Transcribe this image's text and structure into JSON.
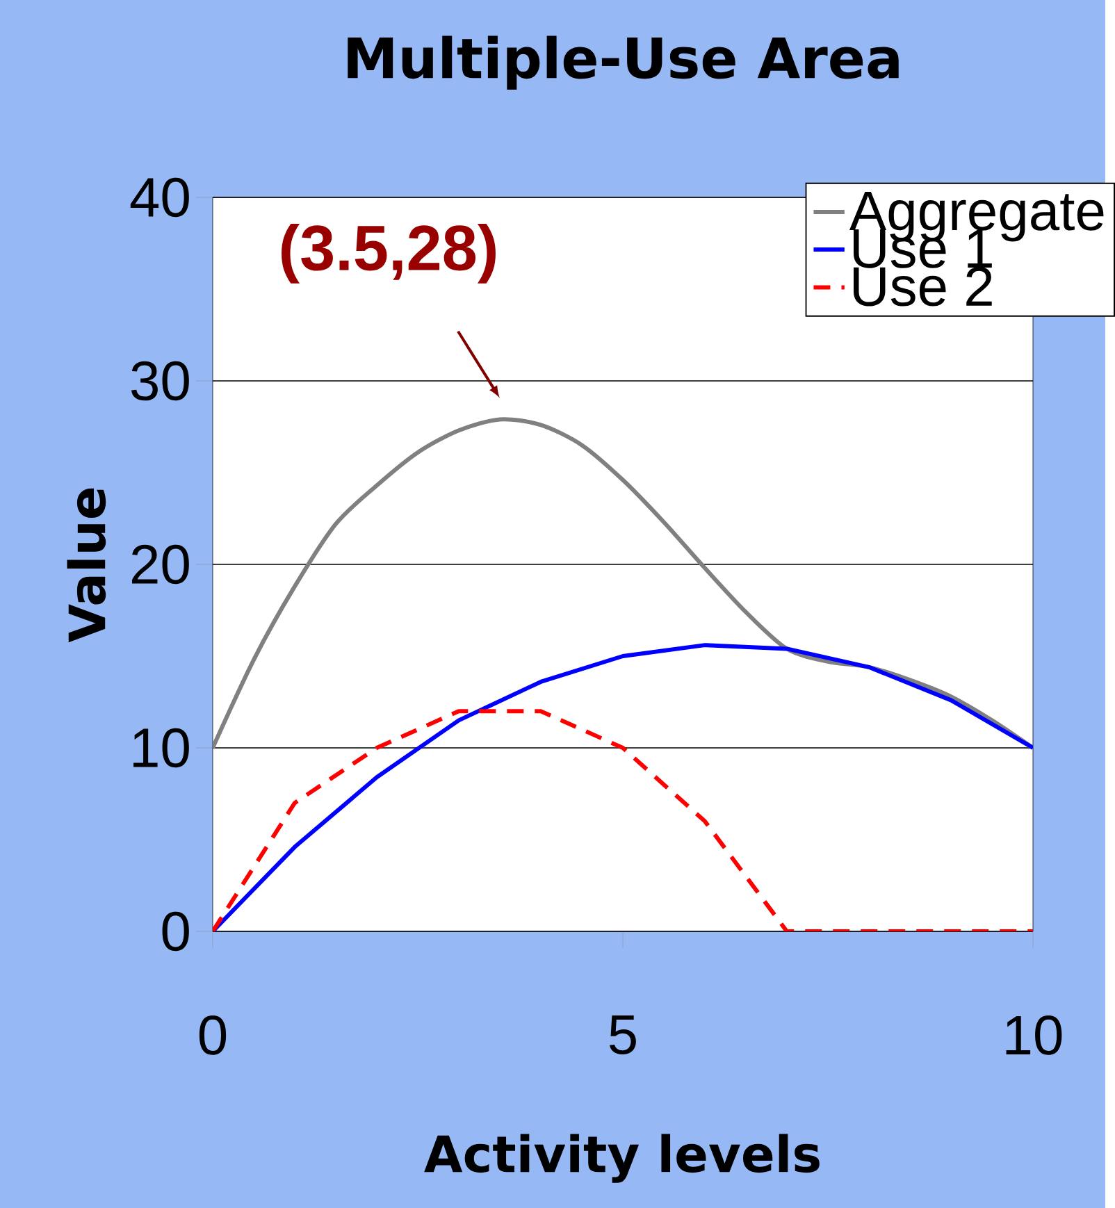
{
  "chart_data": {
    "type": "line",
    "title": "Multiple-Use Area",
    "xlabel": "Activity levels",
    "ylabel": "Value",
    "xlim": [
      0,
      10
    ],
    "xticks": [
      0,
      5,
      10
    ],
    "ylim": [
      0,
      40
    ],
    "yticks": [
      0,
      10,
      20,
      30,
      40
    ],
    "grid": "y",
    "legend": "top right",
    "annotations": [
      {
        "text": "(3.5,28)",
        "x": 3.5,
        "y": 28
      }
    ],
    "series": [
      {
        "name": "Aggregate",
        "color": "#808080",
        "line_style": "solid",
        "x": [
          0,
          0.5,
          1,
          1.5,
          2,
          2.5,
          3,
          3.5,
          4,
          4.5,
          5,
          5.5,
          6,
          6.5,
          7,
          7.5,
          8,
          8.5,
          9,
          9.5,
          10
        ],
        "values": [
          10,
          14.8,
          18.8,
          22.2,
          24.3,
          26.1,
          27.3,
          27.9,
          27.6,
          26.5,
          24.6,
          22.3,
          19.8,
          17.4,
          15.4,
          14.7,
          14.4,
          13.7,
          12.8,
          11.5,
          10
        ]
      },
      {
        "name": "Use 1",
        "color": "#0000ff",
        "line_style": "solid",
        "x": [
          0,
          1,
          2,
          3,
          4,
          5,
          6,
          7,
          8,
          9,
          10
        ],
        "values": [
          0,
          4.6,
          8.4,
          11.5,
          13.6,
          15,
          15.6,
          15.4,
          14.4,
          12.6,
          10
        ]
      },
      {
        "name": "Use 2",
        "color": "#ff0000",
        "line_style": "dashed",
        "x": [
          0,
          1,
          2,
          3,
          4,
          5,
          6,
          7,
          8,
          9,
          10
        ],
        "values": [
          0,
          7,
          10,
          12,
          12,
          10,
          6,
          0,
          0,
          0,
          0
        ]
      }
    ]
  }
}
